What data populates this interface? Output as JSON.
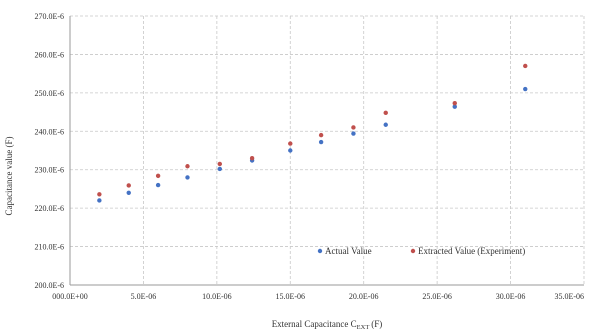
{
  "chart_data": {
    "type": "scatter",
    "title": "",
    "xlabel_main": "External Capacitance C",
    "xlabel_sub": "EXT",
    "xlabel_unit": "(F)",
    "ylabel": "Capacitance value (F)",
    "xlim": [
      0,
      35
    ],
    "ylim": [
      200,
      270
    ],
    "value_unit": "E-6 F",
    "x_ticks": [
      0,
      5,
      10,
      15,
      20,
      25,
      30,
      35
    ],
    "x_tick_labels": [
      "000.0E+00",
      "5.0E-06",
      "10.0E-06",
      "15.0E-06",
      "20.0E-06",
      "25.0E-06",
      "30.0E-06",
      "35.0E-06"
    ],
    "y_ticks": [
      200,
      210,
      220,
      230,
      240,
      250,
      260,
      270
    ],
    "y_tick_labels": [
      "200.0E-6",
      "210.0E-6",
      "220.0E-6",
      "230.0E-6",
      "240.0E-6",
      "250.0E-6",
      "260.0E-6",
      "270.0E-6"
    ],
    "grid": true,
    "legend_position": "bottom-right",
    "series": [
      {
        "name": "Actual Value",
        "color": "#4472c4",
        "x": [
          2.0,
          4.0,
          6.0,
          8.0,
          10.2,
          12.4,
          15.0,
          17.1,
          19.3,
          21.5,
          26.2,
          31.0
        ],
        "y": [
          222.0,
          224.0,
          226.0,
          228.0,
          230.2,
          232.4,
          235.0,
          237.2,
          239.4,
          241.7,
          246.4,
          251.0
        ]
      },
      {
        "name": "Extracted Value (Experiment)",
        "color": "#c0504d",
        "x": [
          2.0,
          4.0,
          6.0,
          8.0,
          10.2,
          12.4,
          15.0,
          17.1,
          19.3,
          21.5,
          26.2,
          31.0
        ],
        "y": [
          223.6,
          225.9,
          228.4,
          230.9,
          231.5,
          233.0,
          236.8,
          239.0,
          241.0,
          244.8,
          247.3,
          257.0
        ]
      }
    ]
  }
}
